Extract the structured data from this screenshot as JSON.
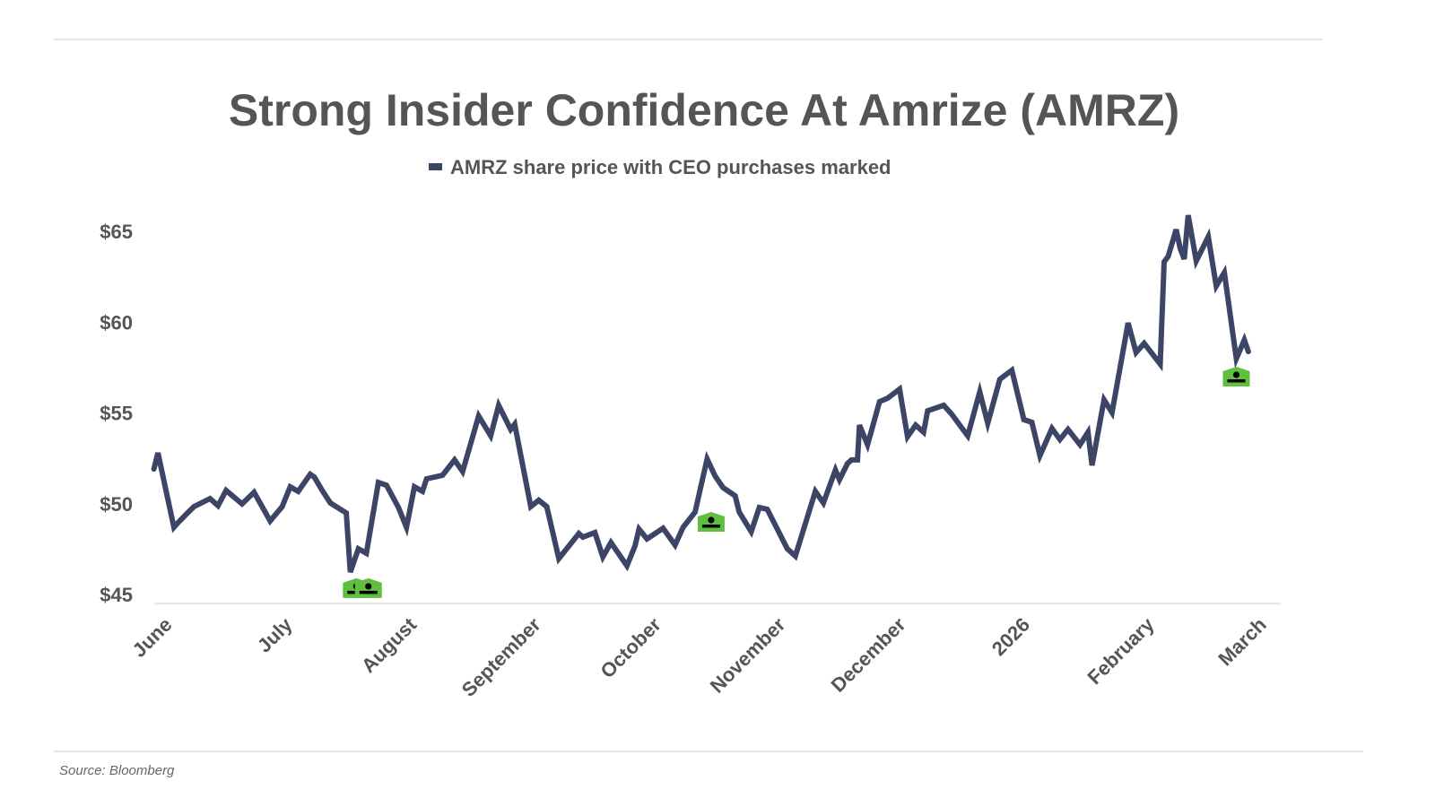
{
  "chart_data": {
    "type": "line",
    "title": "Strong Insider Confidence At Amrize (AMRZ)",
    "legend": {
      "label": "AMRZ share price with CEO purchases marked",
      "placement": "top-center"
    },
    "source": "Source: Bloomberg",
    "xlabel": "",
    "ylabel": "",
    "x_unit": "days since June 1, 2025",
    "ylim": [
      44.5,
      66
    ],
    "yticks": [
      {
        "value": 65,
        "label": "$65"
      },
      {
        "value": 60,
        "label": "$60"
      },
      {
        "value": 55,
        "label": "$55"
      },
      {
        "value": 50,
        "label": "$50"
      },
      {
        "value": 45,
        "label": "$45"
      }
    ],
    "xlim": [
      -3,
      278
    ],
    "xticks": [
      {
        "value": 0,
        "label": "June"
      },
      {
        "value": 30,
        "label": "July"
      },
      {
        "value": 61,
        "label": "August"
      },
      {
        "value": 92,
        "label": "September"
      },
      {
        "value": 122,
        "label": "October"
      },
      {
        "value": 153,
        "label": "November"
      },
      {
        "value": 183,
        "label": "December"
      },
      {
        "value": 214,
        "label": "2026"
      },
      {
        "value": 245,
        "label": "February"
      },
      {
        "value": 273,
        "label": "March"
      }
    ],
    "grid": false,
    "colors": {
      "line": "#3d4566",
      "marker": "#5fbf3f",
      "text": "#555555",
      "rule": "#cccccc"
    },
    "series": [
      {
        "name": "AMRZ share price",
        "points": [
          [
            -3,
            51.91
          ],
          [
            -2,
            52.8
          ],
          [
            2,
            48.7
          ],
          [
            3,
            48.95
          ],
          [
            5,
            49.4
          ],
          [
            7,
            49.84
          ],
          [
            11,
            50.28
          ],
          [
            13,
            49.89
          ],
          [
            15,
            50.73
          ],
          [
            19,
            49.99
          ],
          [
            22,
            50.63
          ],
          [
            26,
            49.05
          ],
          [
            29,
            49.84
          ],
          [
            31,
            50.93
          ],
          [
            33,
            50.68
          ],
          [
            36,
            51.62
          ],
          [
            37,
            51.47
          ],
          [
            39,
            50.73
          ],
          [
            41,
            50.04
          ],
          [
            45,
            49.49
          ],
          [
            46,
            46.23
          ],
          [
            48,
            47.52
          ],
          [
            50,
            47.27
          ],
          [
            53,
            51.17
          ],
          [
            55,
            51.02
          ],
          [
            58,
            49.79
          ],
          [
            59,
            49.25
          ],
          [
            60,
            48.7
          ],
          [
            62,
            50.93
          ],
          [
            64,
            50.68
          ],
          [
            65,
            51.37
          ],
          [
            69,
            51.57
          ],
          [
            72,
            52.41
          ],
          [
            74,
            51.77
          ],
          [
            78,
            54.83
          ],
          [
            81,
            53.74
          ],
          [
            83,
            55.42
          ],
          [
            86,
            54.09
          ],
          [
            87,
            54.38
          ],
          [
            91,
            49.84
          ],
          [
            93,
            50.19
          ],
          [
            95,
            49.84
          ],
          [
            98,
            46.98
          ],
          [
            103,
            48.36
          ],
          [
            104,
            48.16
          ],
          [
            107,
            48.41
          ],
          [
            109,
            47.07
          ],
          [
            111,
            47.86
          ],
          [
            115,
            46.58
          ],
          [
            117,
            47.67
          ],
          [
            118,
            48.6
          ],
          [
            120,
            48.06
          ],
          [
            124,
            48.65
          ],
          [
            127,
            47.72
          ],
          [
            129,
            48.7
          ],
          [
            132,
            49.54
          ],
          [
            135,
            52.46
          ],
          [
            137,
            51.52
          ],
          [
            139,
            50.88
          ],
          [
            142,
            50.43
          ],
          [
            143,
            49.54
          ],
          [
            146,
            48.46
          ],
          [
            148,
            49.79
          ],
          [
            150,
            49.69
          ],
          [
            155,
            47.52
          ],
          [
            157,
            47.12
          ],
          [
            162,
            50.68
          ],
          [
            164,
            50.04
          ],
          [
            167,
            51.86
          ],
          [
            168,
            51.32
          ],
          [
            170,
            52.21
          ],
          [
            171,
            52.41
          ],
          [
            172.5,
            52.41
          ],
          [
            173,
            54.33
          ],
          [
            175,
            53.25
          ],
          [
            178,
            55.62
          ],
          [
            180,
            55.81
          ],
          [
            183,
            56.31
          ],
          [
            185,
            53.69
          ],
          [
            187,
            54.33
          ],
          [
            189,
            53.94
          ],
          [
            190,
            55.12
          ],
          [
            194,
            55.42
          ],
          [
            196,
            54.93
          ],
          [
            198,
            54.33
          ],
          [
            200,
            53.74
          ],
          [
            203,
            56.16
          ],
          [
            205,
            54.43
          ],
          [
            208,
            56.85
          ],
          [
            211,
            57.35
          ],
          [
            214,
            54.63
          ],
          [
            216,
            54.48
          ],
          [
            218,
            52.65
          ],
          [
            221,
            54.14
          ],
          [
            223,
            53.54
          ],
          [
            225,
            54.09
          ],
          [
            228,
            53.25
          ],
          [
            230,
            53.94
          ],
          [
            231,
            52.11
          ],
          [
            234,
            55.72
          ],
          [
            236,
            55.02
          ],
          [
            240,
            59.96
          ],
          [
            242,
            58.33
          ],
          [
            244,
            58.83
          ],
          [
            248,
            57.69
          ],
          [
            249,
            63.32
          ],
          [
            250,
            63.62
          ],
          [
            252,
            65.1
          ],
          [
            253,
            64.06
          ],
          [
            254,
            63.47
          ],
          [
            255,
            65.89
          ],
          [
            257,
            63.37
          ],
          [
            260,
            64.7
          ],
          [
            262,
            61.99
          ],
          [
            264,
            62.73
          ],
          [
            267,
            57.99
          ],
          [
            269,
            59.02
          ],
          [
            270,
            58.38
          ]
        ]
      }
    ],
    "ceo_purchases": [
      {
        "day": 47.5,
        "price": 45.35
      },
      {
        "day": 50.5,
        "price": 45.35
      },
      {
        "day": 136,
        "price": 49.0
      },
      {
        "day": 267,
        "price": 57.0
      }
    ]
  }
}
